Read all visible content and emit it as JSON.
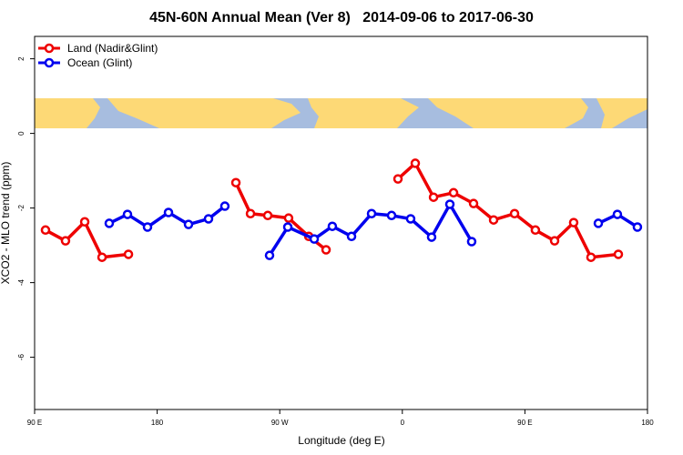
{
  "chart_data": {
    "type": "line",
    "title": "45N-60N Annual Mean (Ver 8)   2014-09-06 to 2017-06-30",
    "x_label": "Longitude (deg E)",
    "y_label": "XCO2 - MLO trend (ppm)",
    "xlim": [
      90,
      540
    ],
    "xticks": [
      {
        "value": 90,
        "label": "90 E"
      },
      {
        "value": 180,
        "label": "180"
      },
      {
        "value": 270,
        "label": "90 W"
      },
      {
        "value": 360,
        "label": "0"
      },
      {
        "value": 450,
        "label": "90 E"
      },
      {
        "value": 540,
        "label": "180"
      }
    ],
    "ylim": [
      -7.4,
      2.6
    ],
    "yticks": [
      -6,
      -4,
      -2,
      0,
      2
    ],
    "legend": "top-left",
    "series": [
      {
        "name": "Land (Nadir&Glint)",
        "color": "#ee0000",
        "x": [
          98,
          112.7,
          126.8,
          139.5,
          158.9,
          null,
          237.8,
          248.5,
          261.2,
          276.5,
          291.3,
          304,
          null,
          356.8,
          369.5,
          382.9,
          397.6,
          412.3,
          427,
          442.4,
          457.7,
          471.8,
          485.8,
          498.5,
          518.6
        ],
        "values": [
          -2.59,
          -2.88,
          -2.37,
          -3.32,
          -3.24,
          null,
          -1.32,
          -2.15,
          -2.2,
          -2.27,
          -2.76,
          -3.12,
          null,
          -1.22,
          -0.8,
          -1.71,
          -1.59,
          -1.88,
          -2.32,
          -2.15,
          -2.59,
          -2.88,
          -2.39,
          -3.32,
          -3.24
        ]
      },
      {
        "name": "Ocean (Glint)",
        "color": "#0000ee",
        "x": [
          144.8,
          158.2,
          172.9,
          188.3,
          203,
          217.7,
          229.7,
          null,
          262.5,
          275.9,
          295.3,
          308.6,
          322.7,
          337.4,
          352.1,
          366.1,
          381.5,
          394.9,
          410.9,
          null,
          503.9,
          517.9,
          532.6
        ],
        "values": [
          -2.41,
          -2.17,
          -2.51,
          -2.12,
          -2.44,
          -2.29,
          -1.95,
          null,
          -3.27,
          -2.51,
          -2.83,
          -2.49,
          -2.76,
          -2.15,
          -2.2,
          -2.29,
          -2.78,
          -1.9,
          -2.9,
          null,
          -2.41,
          -2.17,
          -2.51
        ]
      }
    ]
  }
}
